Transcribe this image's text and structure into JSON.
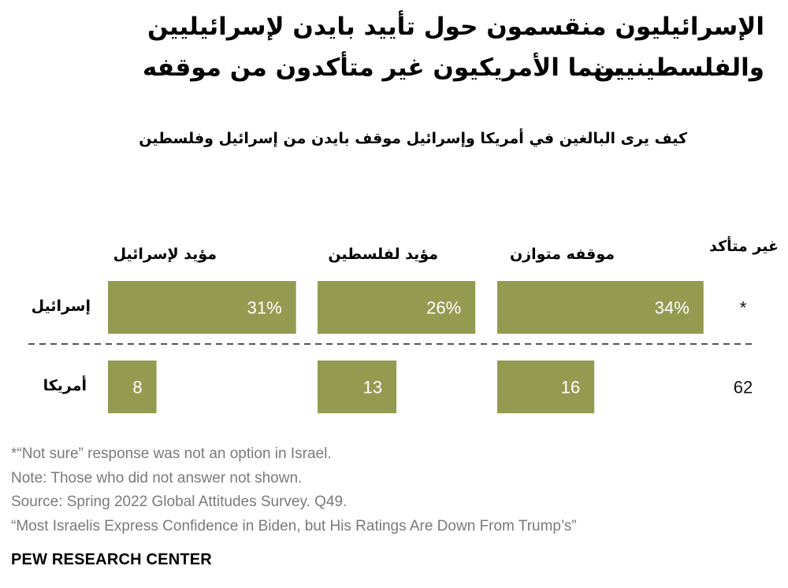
{
  "title_lines": [
    "الإسرائيليون منقسمون حول تأييد بايدن لإسرائيليين والفلسطينيين",
    "بينما الأمريكيون غير متأكدون من موقفه"
  ],
  "subtitle": "كيف يرى البالغين في أمريكا وإسرائيل موقف بايدن من إسرائيل وفلسطين",
  "chart_data": {
    "type": "bar",
    "categories": [
      "مؤيد لإسرائيل",
      "مؤيد لفلسطين",
      "موقفه متوازن",
      "غير متأكد"
    ],
    "series": [
      {
        "name": "إسرائيل",
        "values": [
          31,
          26,
          34,
          null
        ],
        "labels": [
          "31%",
          "26%",
          "34%",
          "*"
        ]
      },
      {
        "name": "أمريكا",
        "values": [
          8,
          13,
          16,
          62
        ],
        "labels": [
          "8",
          "13",
          "16",
          "62"
        ]
      }
    ],
    "bar_color": "#949b51",
    "label_color": "#ffffff",
    "unit": "%"
  },
  "notes": [
    "*“Not sure” response was not an option in Israel.",
    "Note: Those who did not answer not shown.",
    "Source: Spring 2022 Global Attitudes Survey. Q49.",
    "“Most Israelis Express Confidence in Biden, but His Ratings Are Down From Trump’s”"
  ],
  "source_logo": "PEW RESEARCH CENTER"
}
